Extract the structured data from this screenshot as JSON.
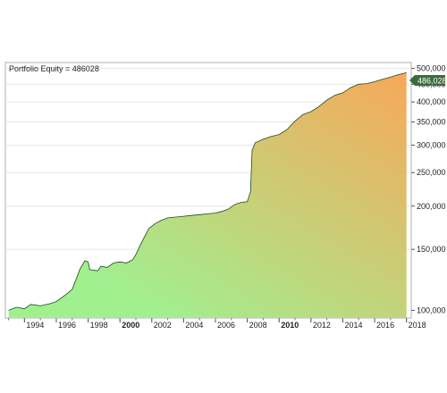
{
  "chart_data": {
    "type": "area",
    "title": "Portfolio Equity = 486028",
    "last_value_label": "486,028",
    "xlabel": "",
    "ylabel": "",
    "y_scale": "log",
    "ylim": [
      95000,
      520000
    ],
    "xlim": [
      1992.8,
      2018.3
    ],
    "grid": true,
    "y_ticks": [
      {
        "value": 100000,
        "label": "100,000"
      },
      {
        "value": 150000,
        "label": "150,000"
      },
      {
        "value": 200000,
        "label": "200,000"
      },
      {
        "value": 250000,
        "label": "250,000"
      },
      {
        "value": 300000,
        "label": "300,000"
      },
      {
        "value": 350000,
        "label": "350,000"
      },
      {
        "value": 400000,
        "label": "400,000"
      },
      {
        "value": 450000,
        "label": "450,000"
      },
      {
        "value": 500000,
        "label": "500,000"
      }
    ],
    "x_ticks": [
      {
        "value": 1994,
        "label": "1994",
        "bold": false
      },
      {
        "value": 1996,
        "label": "1996",
        "bold": false
      },
      {
        "value": 1998,
        "label": "1998",
        "bold": false
      },
      {
        "value": 2000,
        "label": "2000",
        "bold": true
      },
      {
        "value": 2002,
        "label": "2002",
        "bold": false
      },
      {
        "value": 2004,
        "label": "2004",
        "bold": false
      },
      {
        "value": 2006,
        "label": "2006",
        "bold": false
      },
      {
        "value": 2008,
        "label": "2008",
        "bold": false
      },
      {
        "value": 2010,
        "label": "2010",
        "bold": true
      },
      {
        "value": 2012,
        "label": "2012",
        "bold": false
      },
      {
        "value": 2014,
        "label": "2014",
        "bold": false
      },
      {
        "value": 2016,
        "label": "2016",
        "bold": false
      },
      {
        "value": 2018,
        "label": "2018",
        "bold": false
      }
    ],
    "colors": {
      "low": "#a0f090",
      "high": "#f7a85a",
      "line": "#1e4a1e",
      "marker": "#3b6b3b"
    },
    "series": [
      {
        "x": [
          1993.0,
          1993.5,
          1994.0,
          1994.4,
          1995.0,
          1995.6,
          1996.0,
          1996.6,
          1997.0,
          1997.5,
          1997.8,
          1998.0,
          1998.1,
          1998.6,
          1998.8,
          1999.2,
          1999.6,
          2000.0,
          2000.4,
          2000.8,
          2001.0,
          2001.3,
          2001.6,
          2001.8,
          2002.2,
          2002.6,
          2003.0,
          2003.5,
          2004.0,
          2004.5,
          2005.0,
          2005.5,
          2006.0,
          2006.4,
          2006.8,
          2007.2,
          2007.6,
          2008.0,
          2008.2,
          2008.3,
          2008.5,
          2009.0,
          2009.5,
          2010.0,
          2010.5,
          2011.0,
          2011.5,
          2012.0,
          2012.5,
          2013.0,
          2013.5,
          2014.0,
          2014.5,
          2015.0,
          2015.5,
          2016.0,
          2016.5,
          2017.0,
          2017.5,
          2018.0
        ],
        "y": [
          100000,
          102000,
          101000,
          104000,
          103000,
          104500,
          106000,
          111000,
          115000,
          132000,
          139000,
          138000,
          131000,
          130000,
          134000,
          133000,
          137000,
          138000,
          137000,
          140000,
          145000,
          155000,
          165000,
          172000,
          178000,
          182000,
          185000,
          186000,
          187000,
          188000,
          189000,
          190000,
          191000,
          193000,
          196000,
          202000,
          205000,
          206000,
          220000,
          290000,
          305000,
          312000,
          318000,
          322000,
          333000,
          352000,
          368000,
          375000,
          388000,
          405000,
          418000,
          425000,
          440000,
          450000,
          452000,
          458000,
          465000,
          472000,
          480000,
          486028
        ]
      }
    ]
  }
}
